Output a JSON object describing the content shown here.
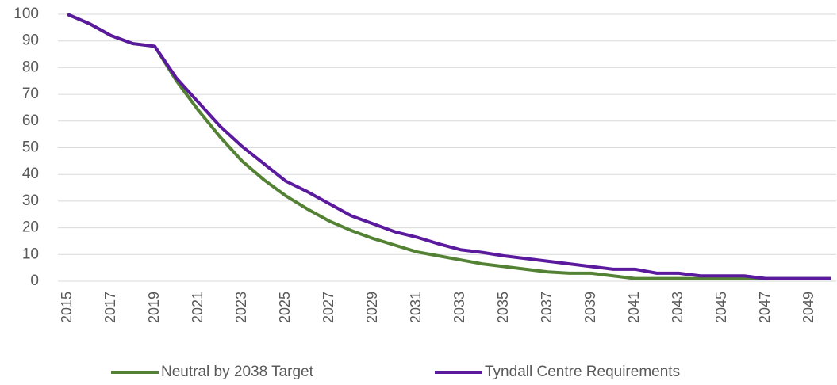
{
  "chart_data": {
    "type": "line",
    "x": [
      2015,
      2016,
      2017,
      2018,
      2019,
      2020,
      2021,
      2022,
      2023,
      2024,
      2025,
      2026,
      2027,
      2028,
      2029,
      2030,
      2031,
      2032,
      2033,
      2034,
      2035,
      2036,
      2037,
      2038,
      2039,
      2040,
      2041,
      2042,
      2043,
      2044,
      2045,
      2046,
      2047,
      2048,
      2049,
      2050
    ],
    "series": [
      {
        "name": "Neutral by 2038 Target",
        "color": "#548235",
        "values": [
          100,
          96.5,
          92,
          89,
          88,
          75,
          64,
          54,
          45,
          38,
          32,
          27,
          22.5,
          19,
          16,
          13.5,
          11,
          9.5,
          8,
          6.5,
          5.5,
          4.5,
          3.5,
          3,
          3,
          2,
          1,
          1,
          1,
          1,
          1,
          1,
          1,
          1,
          1,
          1
        ]
      },
      {
        "name": "Tyndall Centre Requirements",
        "color": "#5b1a9e",
        "values": [
          100,
          96.5,
          92,
          89,
          88,
          76,
          67,
          58,
          50.5,
          44,
          37.5,
          33.5,
          29,
          24.5,
          21.5,
          18.5,
          16.5,
          14,
          11.8,
          10.8,
          9.5,
          8.5,
          7.5,
          6.5,
          5.5,
          4.5,
          4.5,
          3,
          3,
          2,
          2,
          2,
          1,
          1,
          1,
          1
        ]
      }
    ],
    "xlim": [
      2015,
      2050
    ],
    "xticks": [
      2015,
      2017,
      2019,
      2021,
      2023,
      2025,
      2027,
      2029,
      2031,
      2033,
      2035,
      2037,
      2039,
      2041,
      2043,
      2045,
      2047,
      2049
    ],
    "ylim": [
      0,
      100
    ],
    "yticks": [
      0,
      10,
      20,
      30,
      40,
      50,
      60,
      70,
      80,
      90,
      100
    ],
    "grid": true,
    "legend": "bottom"
  }
}
